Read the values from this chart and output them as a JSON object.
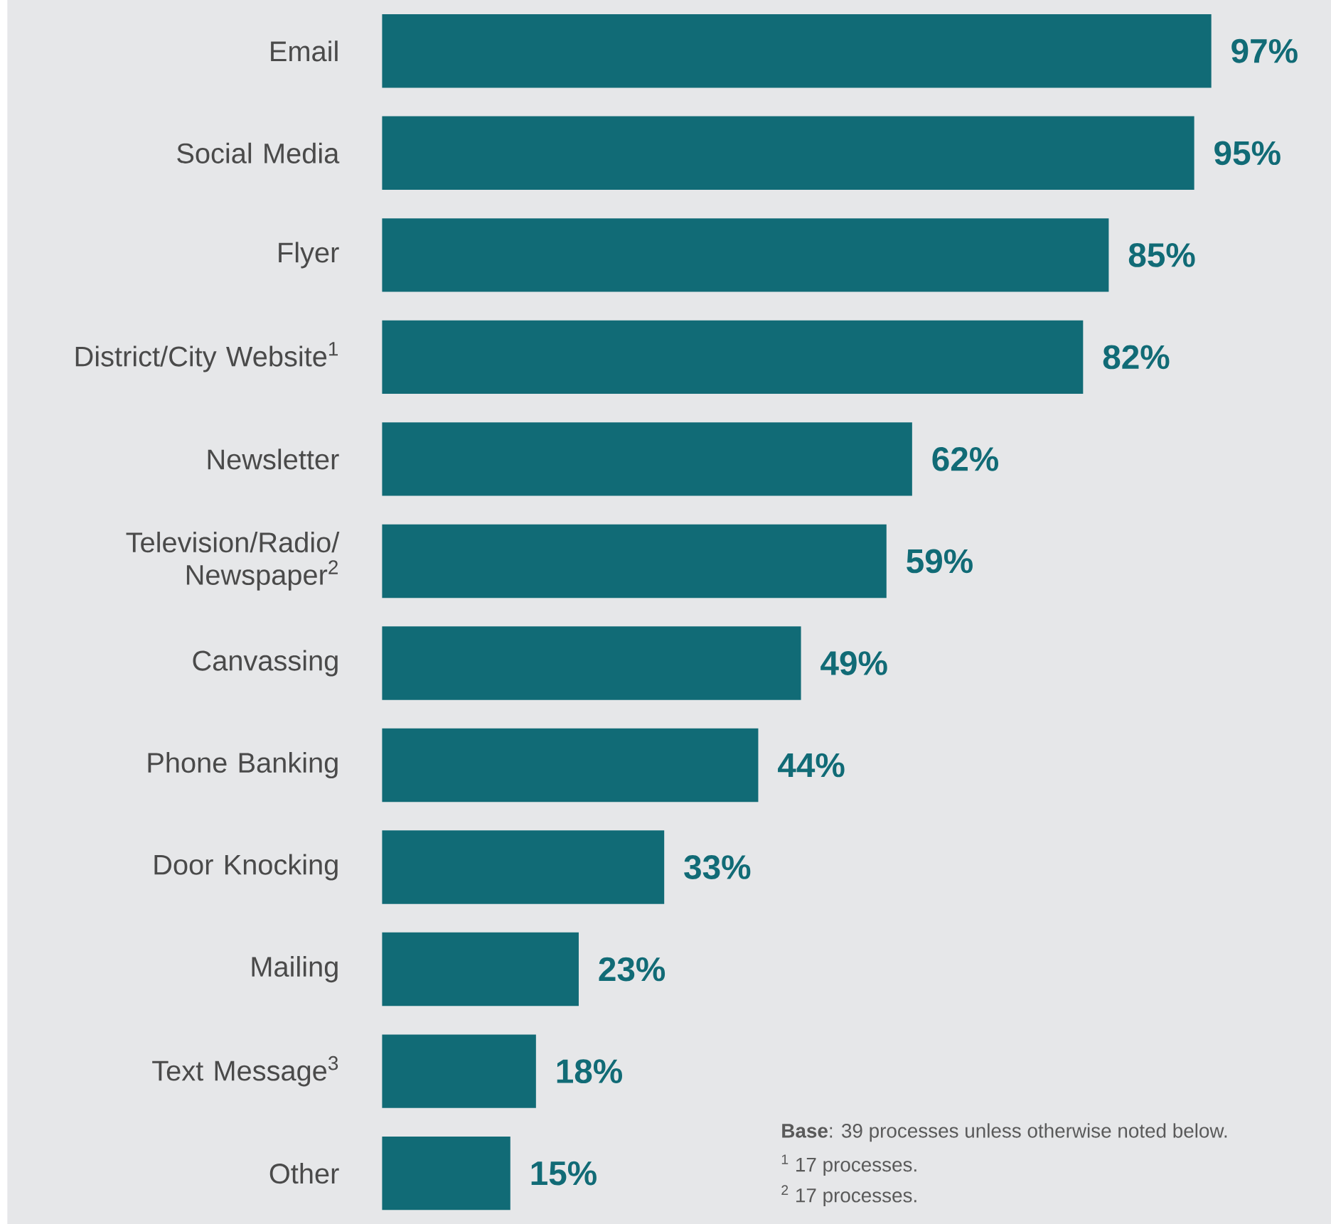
{
  "chart_data": {
    "type": "bar",
    "orientation": "horizontal",
    "categories": [
      "Email",
      "Social Media",
      "Flyer",
      "District/City Website$^{1}$",
      "Newsletter",
      "Television/Radio/ Newspaper$^{2}$",
      "Canvassing",
      "Phone Banking",
      "Door Knocking",
      "Mailing",
      "Text Message$^{3}$",
      "Other"
    ],
    "values": [
      97,
      95,
      85,
      82,
      62,
      59,
      49,
      44,
      33,
      23,
      18,
      15
    ],
    "value_labels": [
      "97%",
      "95%",
      "85%",
      "82%",
      "62%",
      "59%",
      "49%",
      "44%",
      "33%",
      "23%",
      "18%",
      "15%"
    ],
    "color": "#116b76",
    "xlim": [
      0,
      111
    ],
    "annotations": [
      "**Base**: 39 processes unless otherwise noted below.",
      "$^{1}$ 17 processes.",
      "$^{2}$ 17 processes."
    ]
  }
}
